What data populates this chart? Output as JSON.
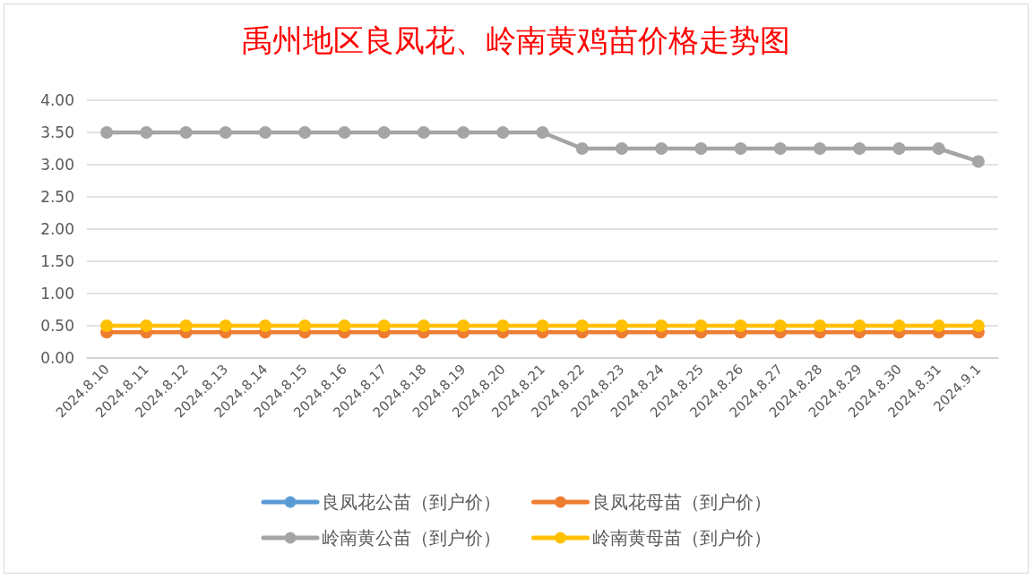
{
  "chart_data": {
    "type": "line",
    "title": "禹州地区良凤花、岭南黄鸡苗价格走势图",
    "categories": [
      "2024.8.10",
      "2024.8.11",
      "2024.8.12",
      "2024.8.13",
      "2024.8.14",
      "2024.8.15",
      "2024.8.16",
      "2024.8.17",
      "2024.8.18",
      "2024.8.19",
      "2024.8.20",
      "2024.8.21",
      "2024.8.22",
      "2024.8.23",
      "2024.8.24",
      "2024.8.25",
      "2024.8.26",
      "2024.8.27",
      "2024.8.28",
      "2024.8.29",
      "2024.8.30",
      "2024.8.31",
      "2024.9.1"
    ],
    "series": [
      {
        "name": "良凤花公苗（到户价）",
        "color": "#5b9bd5",
        "values": [
          null,
          null,
          null,
          null,
          null,
          null,
          null,
          null,
          null,
          null,
          null,
          null,
          null,
          null,
          null,
          null,
          null,
          null,
          null,
          null,
          null,
          null,
          null
        ]
      },
      {
        "name": "良凤花母苗（到户价）",
        "color": "#ed7d31",
        "values": [
          0.4,
          0.4,
          0.4,
          0.4,
          0.4,
          0.4,
          0.4,
          0.4,
          0.4,
          0.4,
          0.4,
          0.4,
          0.4,
          0.4,
          0.4,
          0.4,
          0.4,
          0.4,
          0.4,
          0.4,
          0.4,
          0.4,
          0.4
        ]
      },
      {
        "name": "岭南黄公苗（到户价）",
        "color": "#a5a5a5",
        "values": [
          3.5,
          3.5,
          3.5,
          3.5,
          3.5,
          3.5,
          3.5,
          3.5,
          3.5,
          3.5,
          3.5,
          3.5,
          3.25,
          3.25,
          3.25,
          3.25,
          3.25,
          3.25,
          3.25,
          3.25,
          3.25,
          3.25,
          3.05
        ]
      },
      {
        "name": "岭南黄母苗（到户价）",
        "color": "#ffc000",
        "values": [
          0.5,
          0.5,
          0.5,
          0.5,
          0.5,
          0.5,
          0.5,
          0.5,
          0.5,
          0.5,
          0.5,
          0.5,
          0.5,
          0.5,
          0.5,
          0.5,
          0.5,
          0.5,
          0.5,
          0.5,
          0.5,
          0.5,
          0.5
        ]
      }
    ],
    "ylim": [
      0,
      4
    ],
    "yticks": [
      {
        "value": 0,
        "label": "0.00"
      },
      {
        "value": 0.5,
        "label": "0.50"
      },
      {
        "value": 1,
        "label": "1.00"
      },
      {
        "value": 1.5,
        "label": "1.50"
      },
      {
        "value": 2,
        "label": "2.00"
      },
      {
        "value": 2.5,
        "label": "2.50"
      },
      {
        "value": 3,
        "label": "3.00"
      },
      {
        "value": 3.5,
        "label": "3.50"
      },
      {
        "value": 4,
        "label": "4.00"
      }
    ],
    "grid": "y",
    "legend": "bottom",
    "marker": "circle",
    "line_style": "solid"
  }
}
